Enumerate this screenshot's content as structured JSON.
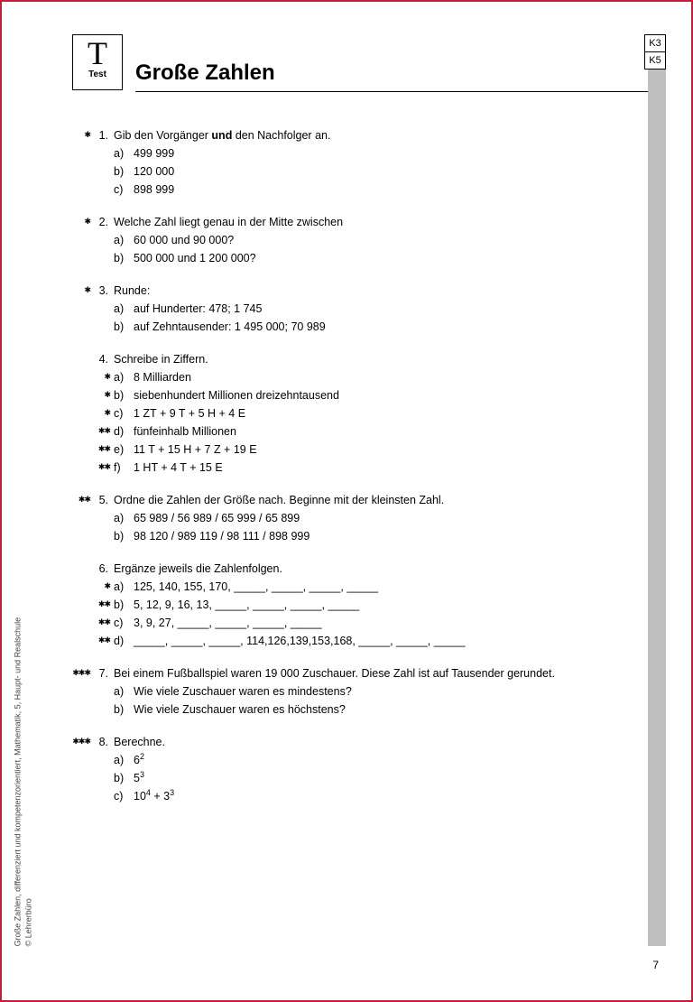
{
  "colors": {
    "border": "#c41e3a",
    "gray_bar": "#bfbfbf",
    "text": "#000000",
    "bg": "#ffffff"
  },
  "header": {
    "glyph": "T",
    "test_label": "Test",
    "title": "Große Zahlen",
    "badges": [
      "K3",
      "K5"
    ]
  },
  "exercises": [
    {
      "stars": "✱",
      "num": "1.",
      "prompt_html": "Gib den Vorgänger <b>und</b> den Nachfolger an.",
      "subs": [
        {
          "stars": "",
          "label": "a)",
          "text": "499 999"
        },
        {
          "stars": "",
          "label": "b)",
          "text": "120 000"
        },
        {
          "stars": "",
          "label": "c)",
          "text": "898 999"
        }
      ]
    },
    {
      "stars": "✱",
      "num": "2.",
      "prompt_html": "Welche Zahl liegt genau in der Mitte zwischen",
      "subs": [
        {
          "stars": "",
          "label": "a)",
          "text": "60 000 und 90 000?"
        },
        {
          "stars": "",
          "label": "b)",
          "text": "500 000 und 1 200 000?"
        }
      ]
    },
    {
      "stars": "✱",
      "num": "3.",
      "prompt_html": "Runde:",
      "subs": [
        {
          "stars": "",
          "label": "a)",
          "text": "auf Hunderter: 478; 1 745"
        },
        {
          "stars": "",
          "label": "b)",
          "text": "auf Zehntausender: 1 495 000; 70 989"
        }
      ]
    },
    {
      "stars": "",
      "num": "4.",
      "prompt_html": "Schreibe in Ziffern.",
      "subs": [
        {
          "stars": "✱",
          "label": "a)",
          "text": "8 Milliarden"
        },
        {
          "stars": "✱",
          "label": "b)",
          "text": "siebenhundert Millionen dreizehntausend"
        },
        {
          "stars": "✱",
          "label": "c)",
          "text": "1 ZT + 9 T + 5 H + 4 E"
        },
        {
          "stars": "✱✱",
          "label": "d)",
          "text": "fünfeinhalb Millionen"
        },
        {
          "stars": "✱✱",
          "label": "e)",
          "text": "11 T + 15 H + 7 Z + 19 E"
        },
        {
          "stars": "✱✱",
          "label": "f)",
          "text": "1 HT + 4 T + 15 E"
        }
      ]
    },
    {
      "stars": "✱✱",
      "num": "5.",
      "prompt_html": "Ordne die Zahlen der Größe nach. Beginne mit der kleinsten Zahl.",
      "subs": [
        {
          "stars": "",
          "label": "a)",
          "text": "65 989 / 56 989 / 65 999 / 65 899"
        },
        {
          "stars": "",
          "label": "b)",
          "text": "98 120 / 989 119 / 98 111 / 898 999"
        }
      ]
    },
    {
      "stars": "",
      "num": "6.",
      "prompt_html": "Ergänze jeweils die Zahlenfolgen.",
      "subs": [
        {
          "stars": "✱",
          "label": "a)",
          "text": "125, 140, 155, 170, _____, _____, _____, _____"
        },
        {
          "stars": "✱✱",
          "label": "b)",
          "text": "5, 12, 9, 16, 13, _____, _____, _____, _____"
        },
        {
          "stars": "✱✱",
          "label": "c)",
          "text": "3, 9, 27, _____, _____, _____, _____"
        },
        {
          "stars": "✱✱",
          "label": "d)",
          "text": "_____, _____, _____, 114,126,139,153,168, _____, _____, _____"
        }
      ]
    },
    {
      "stars": "✱✱✱",
      "num": "7.",
      "prompt_html": "Bei einem Fußballspiel waren 19 000 Zuschauer. Diese Zahl ist auf Tausender gerundet.",
      "subs": [
        {
          "stars": "",
          "label": "a)",
          "text": "Wie viele Zuschauer waren es mindestens?"
        },
        {
          "stars": "",
          "label": "b)",
          "text": "Wie viele Zuschauer waren es höchstens?"
        }
      ]
    },
    {
      "stars": "✱✱✱",
      "num": "8.",
      "prompt_html": "Berechne.",
      "subs": [
        {
          "stars": "",
          "label": "a)",
          "html": "6<sup>2</sup>"
        },
        {
          "stars": "",
          "label": "b)",
          "html": "5<sup>3</sup>"
        },
        {
          "stars": "",
          "label": "c)",
          "html": "10<sup>4</sup> + 3<sup>3</sup>"
        }
      ]
    }
  ],
  "side_text_line1": "Große Zahlen, differenziert und kompetenzorientiert, Mathematik, 5, Haupt- und Realschule",
  "side_text_line2": "© Lehrerbüro",
  "page_number": "7"
}
